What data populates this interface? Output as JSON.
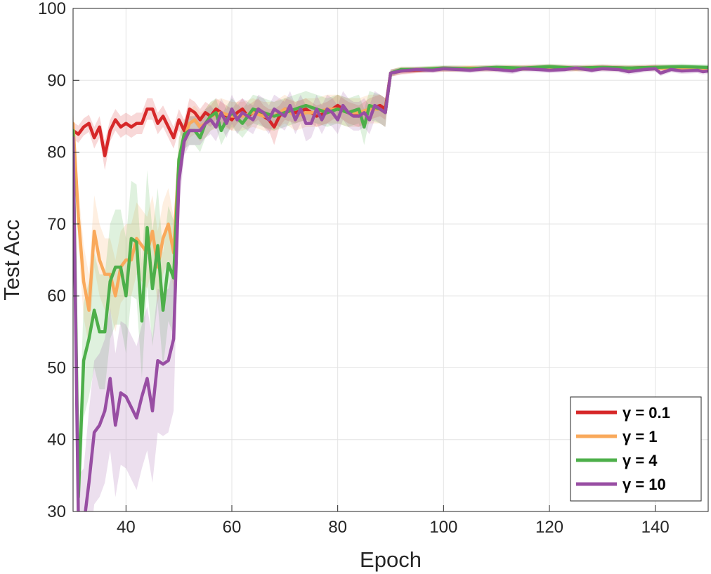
{
  "chart_data": {
    "type": "line",
    "xlabel": "Epoch",
    "ylabel": "Test Acc",
    "xlim": [
      30,
      150
    ],
    "ylim": [
      30,
      100
    ],
    "xticks": [
      40,
      60,
      80,
      100,
      120,
      140
    ],
    "yticks": [
      30,
      40,
      50,
      60,
      70,
      80,
      90,
      100
    ],
    "grid": true,
    "legend_position": "bottom-right",
    "series": [
      {
        "name": "γ = 0.1",
        "color": "#d62728",
        "x": [
          30,
          31,
          32,
          33,
          34,
          35,
          36,
          37,
          38,
          39,
          40,
          41,
          42,
          43,
          44,
          45,
          46,
          47,
          48,
          49,
          50,
          51,
          52,
          53,
          54,
          55,
          56,
          57,
          58,
          59,
          60,
          61,
          62,
          63,
          64,
          65,
          66,
          67,
          68,
          69,
          70,
          72,
          74,
          76,
          78,
          80,
          82,
          84,
          86,
          88,
          89,
          90,
          92,
          95,
          100,
          105,
          110,
          115,
          120,
          125,
          130,
          135,
          140,
          145,
          150
        ],
        "y": [
          83,
          82.5,
          83.5,
          84,
          82,
          83.5,
          79.5,
          83,
          84.5,
          83.5,
          84,
          83.5,
          84,
          84,
          86,
          86,
          84,
          85,
          83.5,
          82,
          84.5,
          83,
          86,
          85.5,
          84.5,
          85.5,
          85,
          86,
          85.5,
          85,
          84.5,
          85.5,
          86,
          85,
          85.5,
          86,
          85,
          84.5,
          83.5,
          85,
          86,
          85.5,
          86,
          85,
          85.5,
          86.5,
          85.5,
          85,
          86,
          86.5,
          86,
          91,
          91.3,
          91.4,
          91.6,
          91.6,
          91.7,
          91.7,
          91.8,
          91.7,
          91.8,
          91.7,
          91.8,
          91.7,
          91.6
        ],
        "band": [
          1.2,
          1.2,
          1.2,
          1.2,
          1.5,
          1.5,
          2,
          1.5,
          1.5,
          1.5,
          1.5,
          1.5,
          1.5,
          1.5,
          1.5,
          1.5,
          1.5,
          1.5,
          1.5,
          1.5,
          1.5,
          1.5,
          1.5,
          1.5,
          1.5,
          1.5,
          1.5,
          1.5,
          1.5,
          1.5,
          1.5,
          1.5,
          1.5,
          1.5,
          1.5,
          1.5,
          1.5,
          1.5,
          2.5,
          1.5,
          1.5,
          1.5,
          1.5,
          1.5,
          1.5,
          1.5,
          1.5,
          1.5,
          1.5,
          1.5,
          1.5,
          0.5,
          0.5,
          0.4,
          0.4,
          0.4,
          0.4,
          0.4,
          0.4,
          0.4,
          0.4,
          0.4,
          0.4,
          0.4,
          0.4
        ]
      },
      {
        "name": "γ = 1",
        "color": "#f9a95b",
        "x": [
          30,
          31,
          32,
          33,
          34,
          35,
          36,
          37,
          38,
          39,
          40,
          41,
          42,
          43,
          44,
          45,
          46,
          47,
          48,
          49,
          50,
          51,
          52,
          53,
          54,
          55,
          56,
          58,
          60,
          62,
          64,
          66,
          68,
          70,
          72,
          74,
          76,
          78,
          80,
          82,
          84,
          86,
          88,
          89,
          90,
          92,
          95,
          100,
          105,
          110,
          115,
          120,
          125,
          130,
          135,
          140,
          145,
          150
        ],
        "y": [
          84,
          71,
          62,
          58,
          69,
          65,
          63,
          63,
          60,
          64,
          65,
          65,
          68,
          67,
          66,
          69,
          64,
          68,
          70,
          66,
          79,
          82,
          84,
          84.5,
          83.5,
          84,
          85,
          85.5,
          85,
          85,
          85.5,
          85,
          85,
          86,
          85,
          85.5,
          85.5,
          86,
          86,
          85.5,
          85.5,
          86,
          86,
          85.5,
          91,
          91.4,
          91.5,
          91.6,
          91.7,
          91.6,
          91.7,
          91.8,
          91.6,
          91.7,
          91.6,
          91.7,
          91.6,
          91.5
        ],
        "band": [
          2,
          4,
          5,
          5,
          5,
          5,
          5,
          5,
          5,
          5,
          5,
          5,
          5,
          5,
          5,
          5,
          5,
          5,
          5,
          5,
          3,
          2,
          2,
          2,
          2,
          2,
          2,
          2,
          2,
          2,
          2,
          2,
          2,
          2,
          2,
          2,
          2,
          2,
          2,
          2,
          2,
          2,
          2,
          2,
          0.5,
          0.5,
          0.4,
          0.4,
          0.4,
          0.4,
          0.4,
          0.4,
          0.4,
          0.4,
          0.4,
          0.4,
          0.4,
          0.4
        ]
      },
      {
        "name": "γ = 4",
        "color": "#4daf4a",
        "x": [
          30,
          31,
          32,
          33,
          34,
          35,
          36,
          37,
          38,
          39,
          40,
          41,
          42,
          43,
          44,
          45,
          46,
          47,
          48,
          49,
          50,
          51,
          52,
          53,
          54,
          55,
          56,
          57,
          58,
          59,
          60,
          62,
          64,
          66,
          68,
          70,
          72,
          74,
          76,
          78,
          80,
          82,
          84,
          85,
          86,
          88,
          89,
          90,
          92,
          95,
          100,
          105,
          110,
          115,
          120,
          125,
          130,
          135,
          140,
          145,
          150
        ],
        "y": [
          83,
          32,
          51,
          54,
          58,
          55,
          55,
          62,
          64,
          64,
          60,
          68,
          67.5,
          56.5,
          69.5,
          61,
          67,
          58,
          64.5,
          62.5,
          79,
          82.5,
          83,
          83,
          82,
          84,
          85,
          85.5,
          83,
          84.5,
          85.5,
          84,
          86,
          85.5,
          85,
          85.5,
          86,
          86.5,
          86,
          85.5,
          86,
          85.5,
          86,
          83.5,
          86.5,
          86,
          85.5,
          91,
          91.5,
          91.5,
          91.7,
          91.6,
          91.8,
          91.7,
          91.9,
          91.7,
          91.8,
          91.7,
          91.8,
          91.9,
          91.8
        ],
        "band": [
          2,
          6,
          8,
          8,
          8,
          8,
          8,
          8,
          8,
          8,
          8,
          8,
          8,
          8,
          8,
          8,
          8,
          8,
          8,
          8,
          3,
          2,
          2,
          2,
          2,
          2,
          2,
          2,
          2,
          2,
          2,
          2,
          2,
          2,
          2,
          2,
          2,
          2,
          2,
          2,
          2,
          2,
          2,
          2.5,
          2,
          2,
          2,
          0.5,
          0.4,
          0.4,
          0.4,
          0.4,
          0.4,
          0.4,
          0.4,
          0.4,
          0.4,
          0.4,
          0.4,
          0.4,
          0.4
        ]
      },
      {
        "name": "γ = 10",
        "color": "#984ea3",
        "x": [
          30,
          31,
          32,
          33,
          34,
          35,
          36,
          37,
          38,
          39,
          40,
          41,
          42,
          43,
          44,
          45,
          46,
          47,
          48,
          49,
          50,
          51,
          52,
          53,
          54,
          55,
          56,
          57,
          58,
          59,
          60,
          61,
          62,
          63,
          64,
          65,
          66,
          67,
          68,
          69,
          70,
          71,
          72,
          73,
          74,
          75,
          76,
          77,
          78,
          79,
          80,
          81,
          82,
          83,
          84,
          85,
          86,
          87,
          88,
          89,
          90,
          92,
          95,
          98,
          100,
          103,
          105,
          108,
          110,
          113,
          115,
          118,
          120,
          123,
          125,
          128,
          130,
          133,
          135,
          138,
          140,
          141,
          143,
          145,
          148,
          149,
          150
        ],
        "y": [
          82,
          29,
          28,
          34,
          41,
          42,
          44,
          48.5,
          42,
          46.5,
          46,
          44.5,
          43,
          46,
          48.5,
          44,
          51,
          50.5,
          51,
          54,
          76,
          81.5,
          83,
          83,
          83,
          84,
          84.5,
          83.5,
          85.5,
          84,
          86,
          84.5,
          85.5,
          85,
          84.5,
          86,
          85.5,
          84.5,
          86,
          85.5,
          85,
          86.5,
          84.5,
          86,
          84,
          84,
          86,
          84.5,
          86,
          85.5,
          84.5,
          86.5,
          85.5,
          85,
          85,
          85.5,
          84.5,
          86.5,
          86,
          85.5,
          91,
          91.3,
          91.5,
          91.4,
          91.6,
          91.5,
          91.4,
          91.6,
          91.5,
          91.3,
          91.6,
          91.5,
          91.4,
          91.5,
          91.7,
          91.4,
          91.6,
          91.5,
          91.2,
          91.5,
          91.6,
          91.0,
          91.5,
          91.3,
          91.4,
          91.2,
          91.3
        ],
        "band": [
          2,
          6,
          8,
          10,
          10,
          10,
          10,
          10,
          10,
          10,
          10,
          10,
          10,
          10,
          10,
          10,
          10,
          10,
          10,
          10,
          4,
          2,
          2,
          2,
          2,
          2,
          2,
          2,
          2,
          2,
          2,
          2,
          2,
          2,
          2,
          2,
          2,
          2,
          2,
          2,
          2,
          2,
          2,
          2,
          2.5,
          2,
          2,
          2,
          2,
          2,
          2,
          2,
          2,
          2,
          2,
          2,
          2,
          2,
          2,
          2,
          0.5,
          0.4,
          0.4,
          0.4,
          0.4,
          0.4,
          0.4,
          0.4,
          0.4,
          0.4,
          0.4,
          0.4,
          0.4,
          0.4,
          0.4,
          0.4,
          0.4,
          0.4,
          0.4,
          0.4,
          0.4,
          0.4,
          0.4,
          0.4,
          0.4,
          0.4,
          0.4
        ]
      }
    ]
  }
}
